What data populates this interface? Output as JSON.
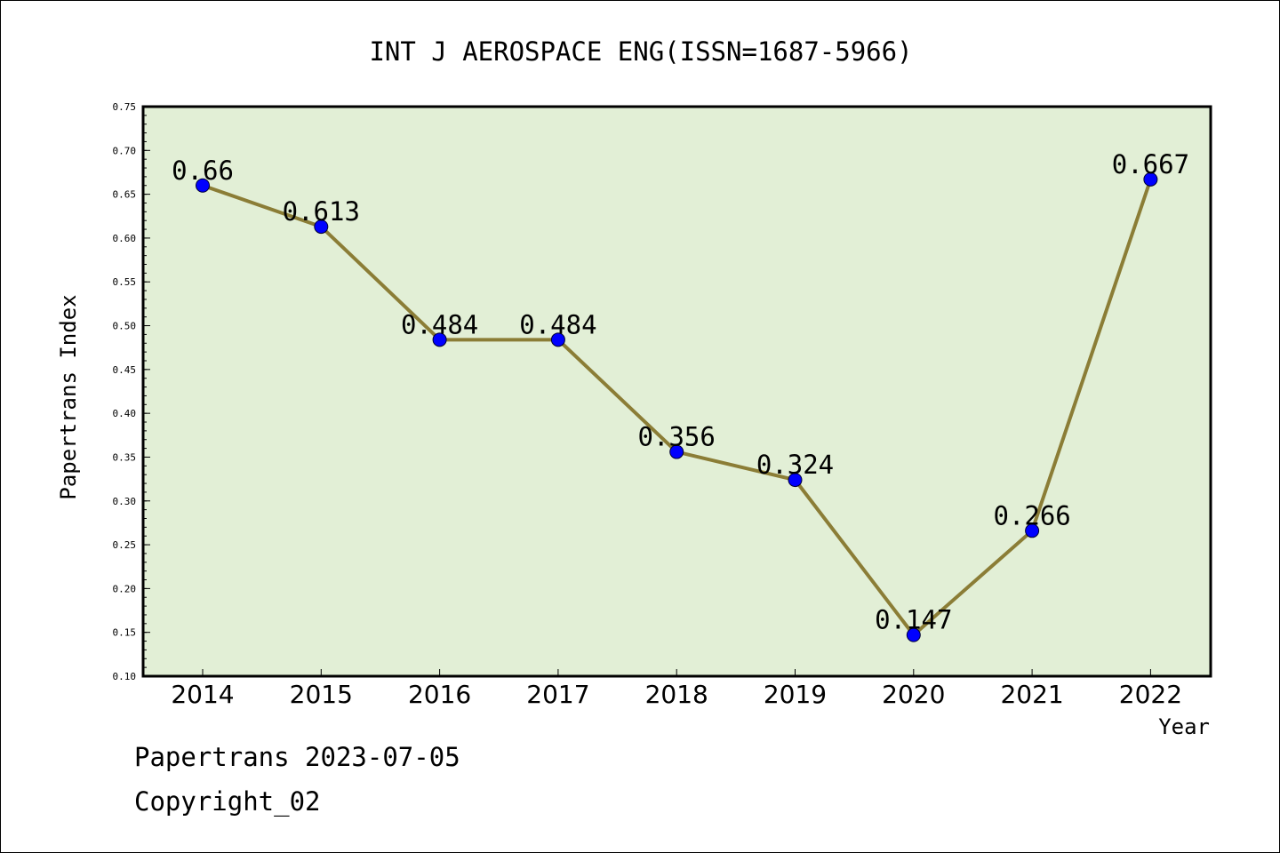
{
  "chart_data": {
    "type": "line",
    "title": "INT J AEROSPACE ENG(ISSN=1687-5966)",
    "xlabel": "Year",
    "ylabel": "Papertrans Index",
    "categories": [
      "2014",
      "2015",
      "2016",
      "2017",
      "2018",
      "2019",
      "2020",
      "2021",
      "2022"
    ],
    "series": [
      {
        "values": [
          0.66,
          0.613,
          0.484,
          0.484,
          0.356,
          0.324,
          0.147,
          0.266,
          0.667
        ],
        "labels": [
          "0.66",
          "0.613",
          "0.484",
          "0.484",
          "0.356",
          "0.324",
          "0.147",
          "0.266",
          "0.667"
        ]
      }
    ],
    "ylim": [
      0.1,
      0.75
    ],
    "yticks": [
      "0.10",
      "0.15",
      "0.20",
      "0.25",
      "0.30",
      "0.35",
      "0.40",
      "0.45",
      "0.50",
      "0.55",
      "0.60",
      "0.65",
      "0.70",
      "0.75"
    ],
    "grid": false,
    "legend": "none",
    "colors": {
      "plot_background": "#e2efd6",
      "line": "#8b7d36",
      "marker": "#0000ff"
    }
  },
  "footer": {
    "line1": "Papertrans 2023-07-05",
    "line2": "Copyright_02"
  }
}
